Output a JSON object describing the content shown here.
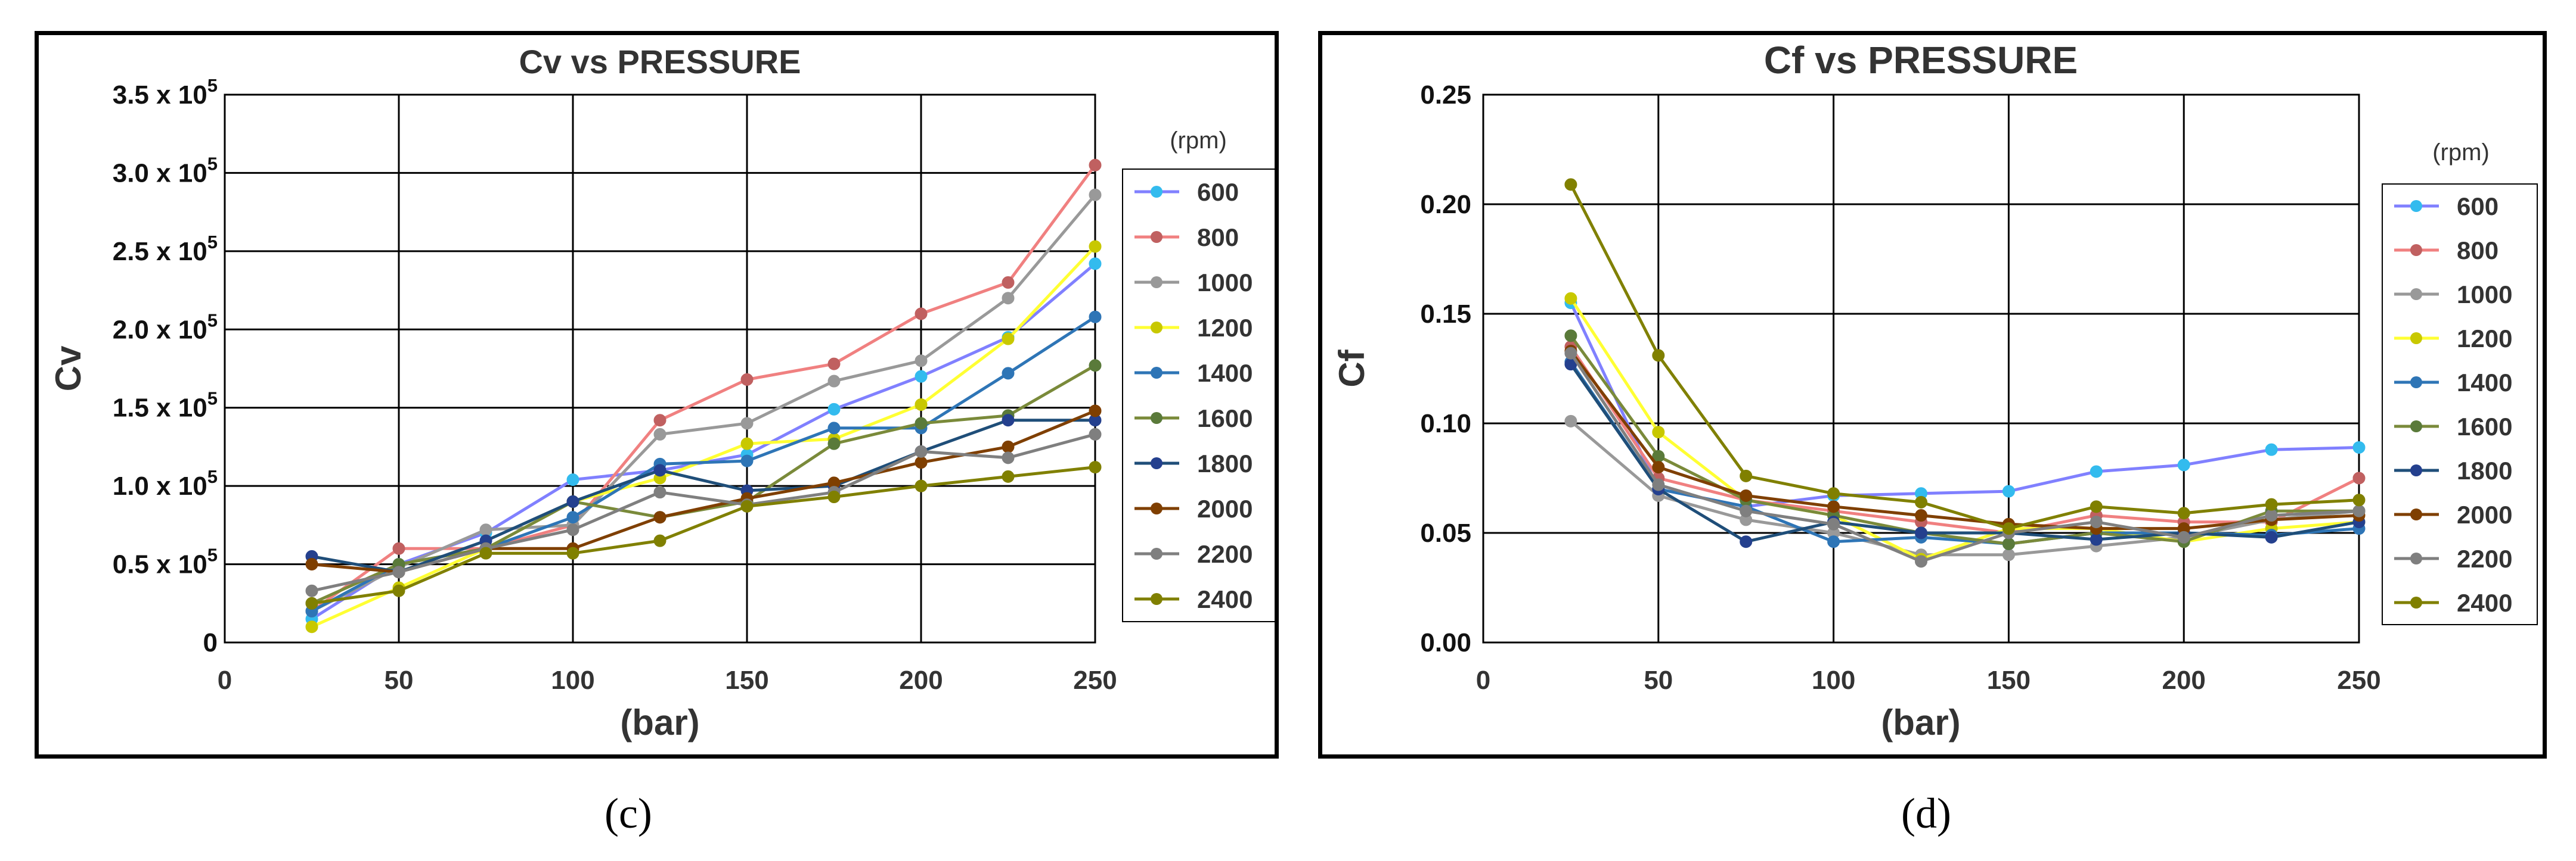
{
  "chart_data": [
    {
      "type": "line",
      "title": "Cv vs PRESSURE",
      "xlabel": "(bar)",
      "ylabel": "Cv",
      "legend_title": "(rpm)",
      "legend_position": "right",
      "grid": true,
      "xlim": [
        0,
        250
      ],
      "ylim": [
        0,
        350000
      ],
      "x_ticks": [
        0,
        50,
        100,
        150,
        200,
        250
      ],
      "x_tick_labels": [
        "0",
        "50",
        "100",
        "150",
        "200",
        "250"
      ],
      "y_ticks": [
        0,
        50000,
        100000,
        150000,
        200000,
        250000,
        300000,
        350000
      ],
      "y_tick_labels": [
        {
          "base": "0",
          "exp": ""
        },
        {
          "base": "0.5 x 10",
          "exp": "5"
        },
        {
          "base": "1.0 x 10",
          "exp": "5"
        },
        {
          "base": "1.5 x 10",
          "exp": "5"
        },
        {
          "base": "2.0 x 10",
          "exp": "5"
        },
        {
          "base": "2.5 x 10",
          "exp": "5"
        },
        {
          "base": "3.0 x 10",
          "exp": "5"
        },
        {
          "base": "3.5 x 10",
          "exp": "5"
        }
      ],
      "x": [
        25,
        50,
        75,
        100,
        125,
        150,
        175,
        200,
        225,
        250
      ],
      "series": [
        {
          "name": "600",
          "color": "#8080ff",
          "marker": "#33bbee",
          "values": [
            15000,
            50000,
            70000,
            104000,
            110000,
            120000,
            149000,
            170000,
            195000,
            242000
          ]
        },
        {
          "name": "800",
          "color": "#f08080",
          "marker": "#c06060",
          "values": [
            20000,
            60000,
            60000,
            75000,
            142000,
            168000,
            178000,
            210000,
            230000,
            305000
          ]
        },
        {
          "name": "1000",
          "color": "#999999",
          "marker": "#999999",
          "values": [
            20000,
            48000,
            72000,
            75000,
            133000,
            140000,
            167000,
            180000,
            220000,
            286000
          ]
        },
        {
          "name": "1200",
          "color": "#ffff33",
          "marker": "#c8c800",
          "values": [
            10000,
            35000,
            60000,
            90000,
            105000,
            127000,
            130000,
            152000,
            194000,
            253000
          ]
        },
        {
          "name": "1400",
          "color": "#2e75b6",
          "marker": "#2e75b6",
          "values": [
            20000,
            50000,
            60000,
            80000,
            114000,
            116000,
            137000,
            137000,
            172000,
            208000
          ]
        },
        {
          "name": "1600",
          "color": "#7a8a3a",
          "marker": "#5a7a3a",
          "values": [
            25000,
            50000,
            60000,
            90000,
            80000,
            90000,
            127000,
            140000,
            145000,
            177000
          ]
        },
        {
          "name": "1800",
          "color": "#1f4e79",
          "marker": "#24408e",
          "values": [
            55000,
            45000,
            65000,
            90000,
            110000,
            97000,
            100000,
            122000,
            142000,
            142000
          ]
        },
        {
          "name": "2000",
          "color": "#7f3f00",
          "marker": "#7f3f00",
          "values": [
            50000,
            45000,
            60000,
            60000,
            80000,
            92000,
            102000,
            115000,
            125000,
            148000
          ]
        },
        {
          "name": "2200",
          "color": "#7f7f7f",
          "marker": "#7f7f7f",
          "values": [
            33000,
            45000,
            60000,
            72000,
            96000,
            88000,
            96000,
            122000,
            118000,
            133000
          ]
        },
        {
          "name": "2400",
          "color": "#808000",
          "marker": "#808000",
          "values": [
            25000,
            33000,
            57000,
            57000,
            65000,
            87000,
            93000,
            100000,
            106000,
            112000
          ]
        }
      ],
      "caption": "(c)"
    },
    {
      "type": "line",
      "title": "Cf vs PRESSURE",
      "xlabel": "(bar)",
      "ylabel": "Cf",
      "legend_title": "(rpm)",
      "legend_position": "right",
      "grid": true,
      "xlim": [
        0,
        250
      ],
      "ylim": [
        0,
        0.25
      ],
      "x_ticks": [
        0,
        50,
        100,
        150,
        200,
        250
      ],
      "x_tick_labels": [
        "0",
        "50",
        "100",
        "150",
        "200",
        "250"
      ],
      "y_ticks": [
        0,
        0.05,
        0.1,
        0.15,
        0.2,
        0.25
      ],
      "y_tick_labels": [
        {
          "base": "0.00",
          "exp": ""
        },
        {
          "base": "0.05",
          "exp": ""
        },
        {
          "base": "0.10",
          "exp": ""
        },
        {
          "base": "0.15",
          "exp": ""
        },
        {
          "base": "0.20",
          "exp": ""
        },
        {
          "base": "0.25",
          "exp": ""
        }
      ],
      "x": [
        25,
        50,
        75,
        100,
        125,
        150,
        175,
        200,
        225,
        250
      ],
      "series": [
        {
          "name": "600",
          "color": "#8080ff",
          "marker": "#33bbee",
          "values": [
            0.155,
            0.07,
            0.062,
            0.067,
            0.068,
            0.069,
            0.078,
            0.081,
            0.088,
            0.089
          ]
        },
        {
          "name": "800",
          "color": "#f08080",
          "marker": "#c06060",
          "values": [
            0.135,
            0.075,
            0.065,
            0.06,
            0.055,
            0.05,
            0.058,
            0.055,
            0.055,
            0.075
          ]
        },
        {
          "name": "1000",
          "color": "#999999",
          "marker": "#999999",
          "values": [
            0.101,
            0.067,
            0.056,
            0.05,
            0.04,
            0.04,
            0.044,
            0.048,
            0.056,
            0.06
          ]
        },
        {
          "name": "1200",
          "color": "#ffff33",
          "marker": "#c8c800",
          "values": [
            0.157,
            0.096,
            0.065,
            0.058,
            0.038,
            0.052,
            0.052,
            0.046,
            0.052,
            0.055
          ]
        },
        {
          "name": "1400",
          "color": "#2e75b6",
          "marker": "#2e75b6",
          "values": [
            0.128,
            0.07,
            0.062,
            0.046,
            0.048,
            0.045,
            0.05,
            0.05,
            0.049,
            0.052
          ]
        },
        {
          "name": "1600",
          "color": "#7a8a3a",
          "marker": "#5a7a3a",
          "values": [
            0.14,
            0.085,
            0.065,
            0.058,
            0.05,
            0.045,
            0.05,
            0.046,
            0.06,
            0.06
          ]
        },
        {
          "name": "1800",
          "color": "#1f4e79",
          "marker": "#24408e",
          "values": [
            0.127,
            0.07,
            0.046,
            0.055,
            0.05,
            0.05,
            0.047,
            0.05,
            0.048,
            0.055
          ]
        },
        {
          "name": "2000",
          "color": "#7f3f00",
          "marker": "#7f3f00",
          "values": [
            0.133,
            0.08,
            0.067,
            0.062,
            0.058,
            0.054,
            0.052,
            0.052,
            0.056,
            0.058
          ]
        },
        {
          "name": "2200",
          "color": "#7f7f7f",
          "marker": "#7f7f7f",
          "values": [
            0.132,
            0.072,
            0.06,
            0.054,
            0.037,
            0.05,
            0.055,
            0.048,
            0.058,
            0.06
          ]
        },
        {
          "name": "2400",
          "color": "#808000",
          "marker": "#808000",
          "values": [
            0.209,
            0.131,
            0.076,
            0.068,
            0.064,
            0.052,
            0.062,
            0.059,
            0.063,
            0.065
          ]
        }
      ],
      "caption": "(d)"
    }
  ]
}
